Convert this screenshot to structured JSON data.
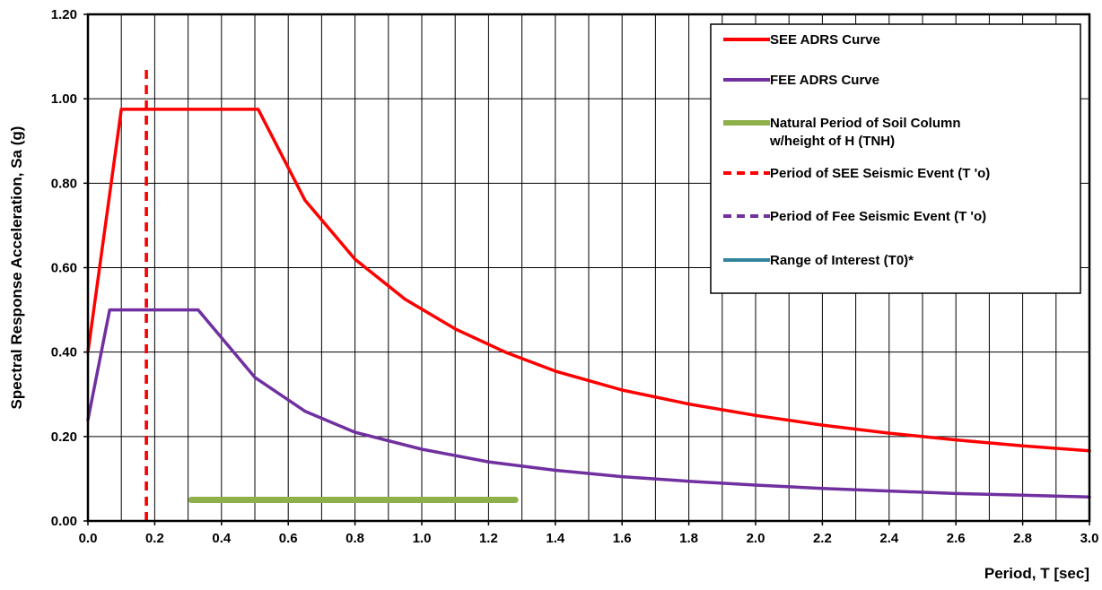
{
  "chart_data": {
    "type": "line",
    "title": "",
    "xlabel": "Period, T [sec]",
    "ylabel": "Spectral Response Acceleration, Sa (g)",
    "xlim": [
      0,
      3.0
    ],
    "ylim": [
      0,
      1.2
    ],
    "x_ticks": [
      "0.0",
      "0.2",
      "0.4",
      "0.6",
      "0.8",
      "1.0",
      "1.2",
      "1.4",
      "1.6",
      "1.8",
      "2.0",
      "2.2",
      "2.4",
      "2.6",
      "2.8",
      "3.0"
    ],
    "y_ticks": [
      "0.00",
      "0.20",
      "0.40",
      "0.60",
      "0.80",
      "1.00",
      "1.20"
    ],
    "grid": true,
    "legend_position": "top-right",
    "series": [
      {
        "name": "SEE ADRS Curve",
        "color": "#ff0000",
        "style": "solid",
        "x": [
          0.0,
          0.1,
          0.51,
          0.65,
          0.8,
          0.95,
          1.1,
          1.25,
          1.4,
          1.6,
          1.8,
          2.0,
          2.2,
          2.4,
          2.6,
          2.8,
          3.0
        ],
        "y": [
          0.4,
          0.975,
          0.975,
          0.76,
          0.62,
          0.525,
          0.455,
          0.4,
          0.355,
          0.31,
          0.277,
          0.25,
          0.227,
          0.208,
          0.192,
          0.178,
          0.166
        ]
      },
      {
        "name": "FEE ADRS Curve",
        "color": "#7030a0",
        "style": "solid",
        "x": [
          0.0,
          0.065,
          0.33,
          0.5,
          0.65,
          0.8,
          1.0,
          1.2,
          1.4,
          1.6,
          1.8,
          2.0,
          2.2,
          2.4,
          2.6,
          2.8,
          3.0
        ],
        "y": [
          0.24,
          0.5,
          0.5,
          0.34,
          0.26,
          0.21,
          0.17,
          0.14,
          0.12,
          0.105,
          0.094,
          0.085,
          0.077,
          0.071,
          0.065,
          0.061,
          0.057
        ]
      },
      {
        "name": "Natural Period of Soil Column w/height of H (TNH)",
        "legend_lines": [
          "Natural Period of Soil Column",
          "w/height of H (TNH)"
        ],
        "color": "#8db04a",
        "style": "thick",
        "x": [
          0.31,
          1.28
        ],
        "y": [
          0.05,
          0.05
        ]
      },
      {
        "name": "Period of SEE Seismic Event (T 'o)",
        "color": "#ff0000",
        "style": "dashed",
        "x": [
          0.175,
          0.175
        ],
        "y": [
          0.0,
          1.08
        ]
      },
      {
        "name": "Period of Fee Seismic Event (T 'o)",
        "color": "#7030a0",
        "style": "dashed",
        "x": [
          0.175,
          0.175
        ],
        "y": [
          0.0,
          0.98
        ]
      },
      {
        "name": "Range of Interest (T0)*",
        "color": "#31849b",
        "style": "solid",
        "x": [],
        "y": []
      }
    ]
  }
}
